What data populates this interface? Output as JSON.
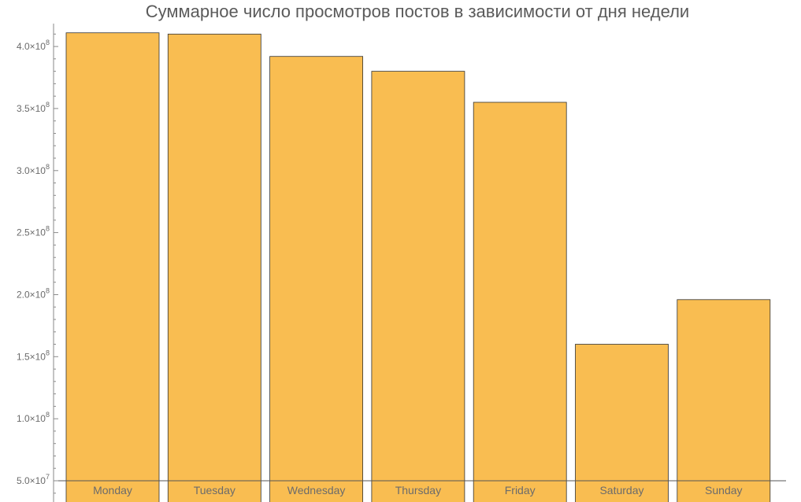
{
  "chart_data": {
    "type": "bar",
    "title": "Суммарное число просмотров постов в зависимости от дня недели",
    "categories": [
      "Monday",
      "Tuesday",
      "Wednesday",
      "Thursday",
      "Friday",
      "Saturday",
      "Sunday"
    ],
    "values": [
      411000000,
      410000000,
      392000000,
      380000000,
      355000000,
      160000000,
      196000000
    ],
    "ylim": [
      50000000,
      414000000
    ],
    "y_ticks": [
      {
        "value": 50000000,
        "mantissa": "5.0",
        "exp": "7"
      },
      {
        "value": 100000000,
        "mantissa": "1.0",
        "exp": "8"
      },
      {
        "value": 150000000,
        "mantissa": "1.5",
        "exp": "8"
      },
      {
        "value": 200000000,
        "mantissa": "2.0",
        "exp": "8"
      },
      {
        "value": 250000000,
        "mantissa": "2.5",
        "exp": "8"
      },
      {
        "value": 300000000,
        "mantissa": "3.0",
        "exp": "8"
      },
      {
        "value": 350000000,
        "mantissa": "3.5",
        "exp": "8"
      },
      {
        "value": 400000000,
        "mantissa": "4.0",
        "exp": "8"
      }
    ],
    "bar_color": "#f9bd51",
    "bar_edge_color": "#333333",
    "axis_color": "#8a8a8a",
    "grid": false,
    "xlabel": "",
    "ylabel": ""
  }
}
